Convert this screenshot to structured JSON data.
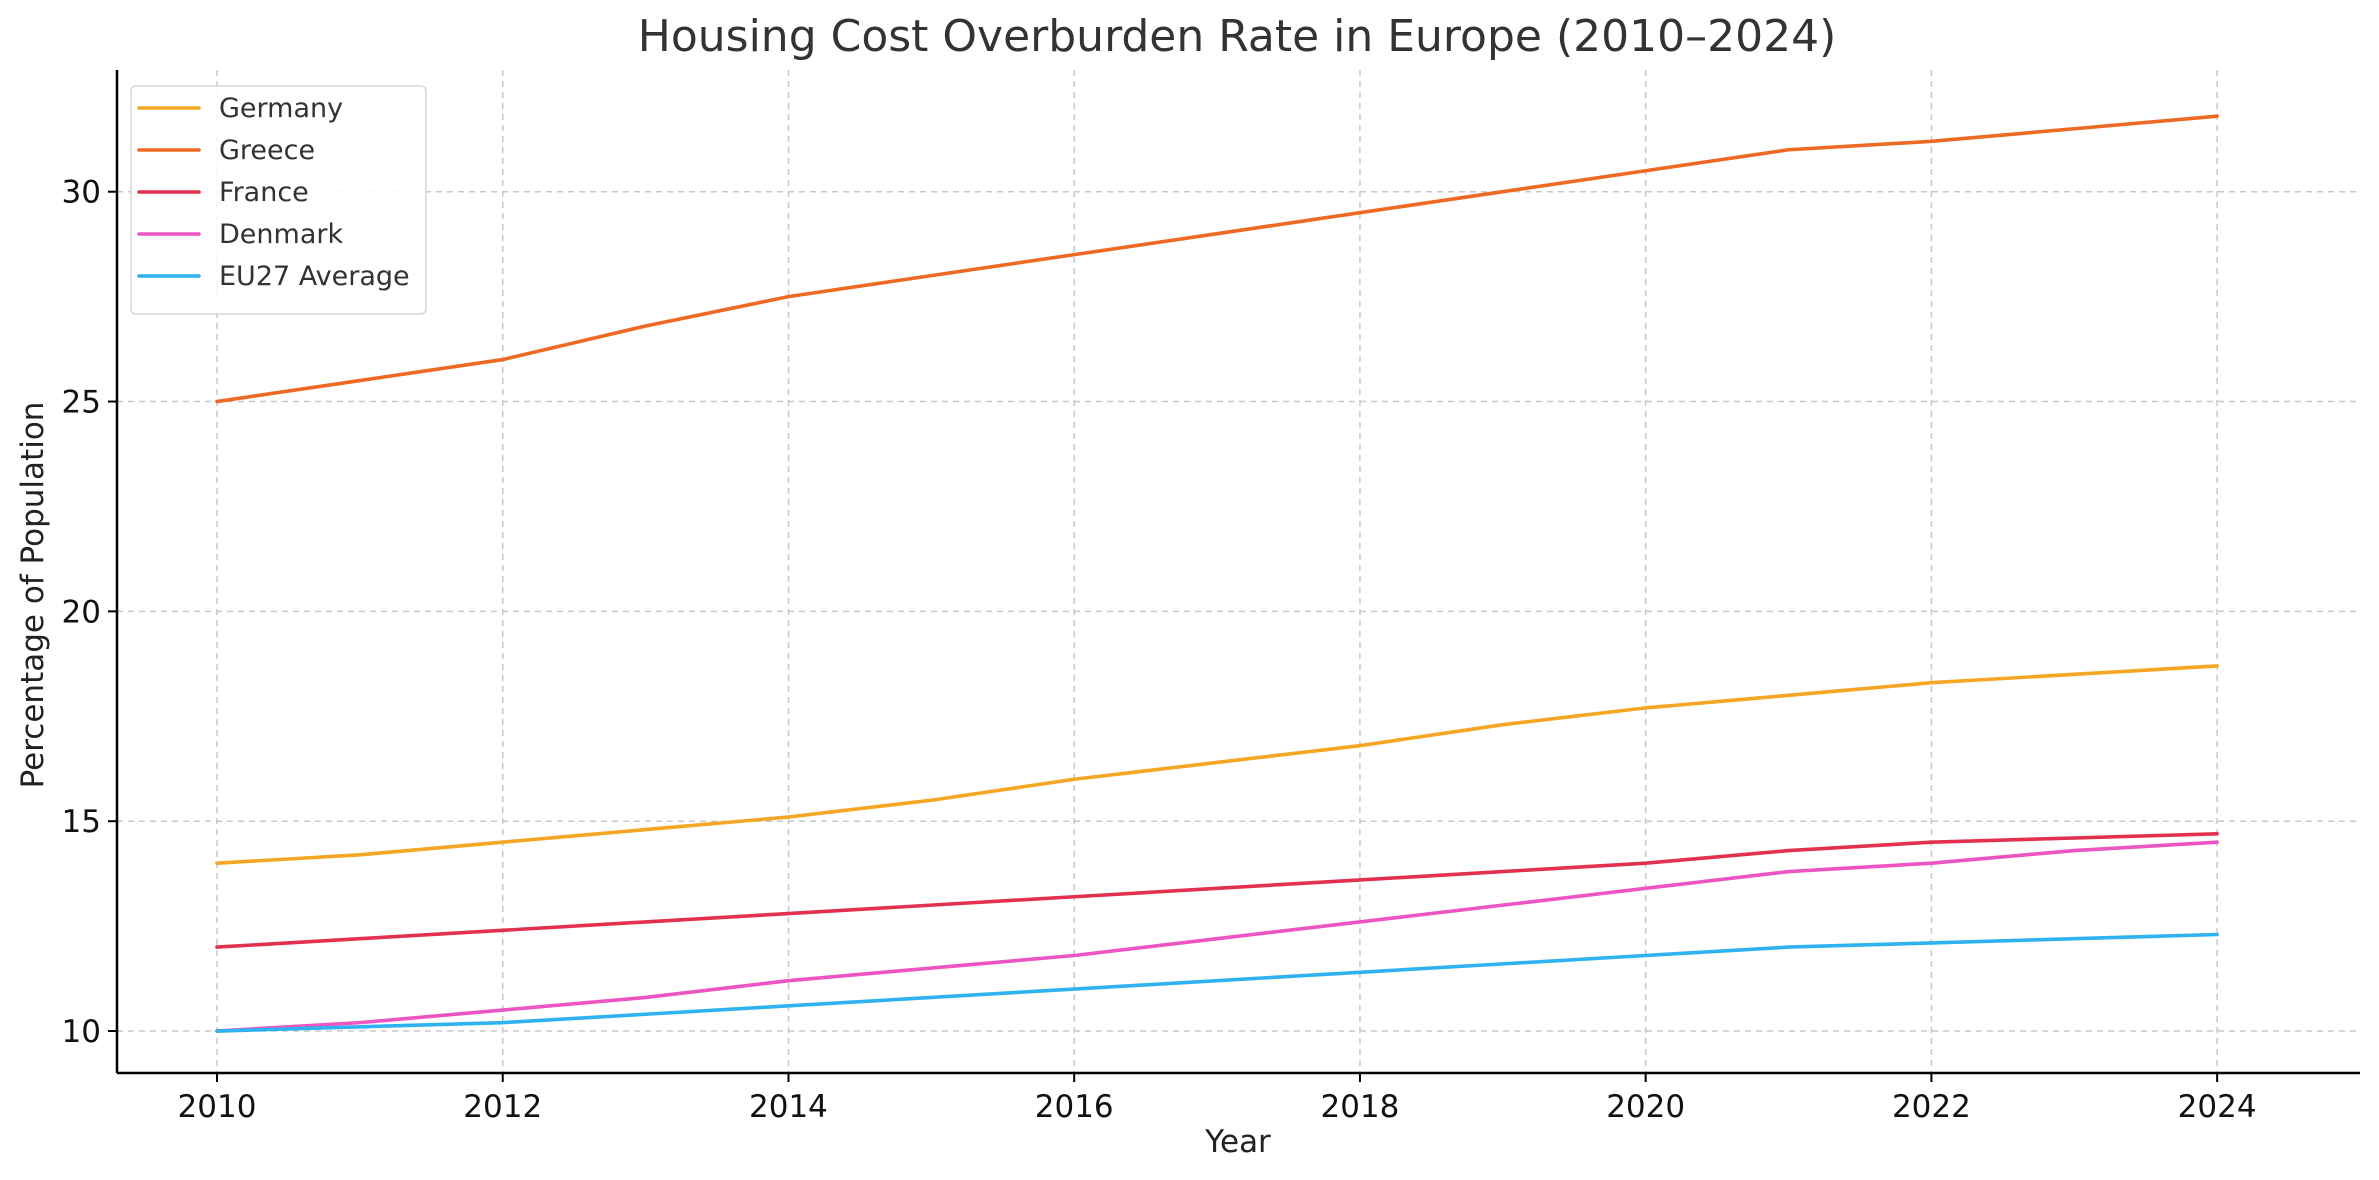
{
  "chart_data": {
    "type": "line",
    "title": "Housing Cost Overburden Rate in Europe (2010–2024)",
    "xlabel": "Year",
    "ylabel": "Percentage of Population",
    "x": [
      2010,
      2011,
      2012,
      2013,
      2014,
      2015,
      2016,
      2017,
      2018,
      2019,
      2020,
      2021,
      2022,
      2023,
      2024
    ],
    "xticks": [
      2010,
      2012,
      2014,
      2016,
      2018,
      2020,
      2022,
      2024
    ],
    "yticks": [
      10,
      15,
      20,
      25,
      30
    ],
    "xlim": [
      2009.3,
      2025.0
    ],
    "ylim": [
      9.0,
      32.9
    ],
    "grid": true,
    "legend_position": "top-left",
    "series": [
      {
        "name": "Germany",
        "color": "#F5A623",
        "values": [
          14.0,
          14.2,
          14.5,
          14.8,
          15.1,
          15.5,
          16.0,
          16.4,
          16.8,
          17.3,
          17.7,
          18.0,
          18.3,
          18.5,
          18.7
        ]
      },
      {
        "name": "Greece",
        "color": "#EE6A24",
        "values": [
          25.0,
          25.5,
          26.0,
          26.8,
          27.5,
          28.0,
          28.5,
          29.0,
          29.5,
          30.0,
          30.5,
          31.0,
          31.2,
          31.5,
          31.8
        ]
      },
      {
        "name": "France",
        "color": "#E2314F",
        "values": [
          12.0,
          12.2,
          12.4,
          12.6,
          12.8,
          13.0,
          13.2,
          13.4,
          13.6,
          13.8,
          14.0,
          14.3,
          14.5,
          14.6,
          14.7
        ]
      },
      {
        "name": "Denmark",
        "color": "#EC55C2",
        "values": [
          10.0,
          10.2,
          10.5,
          10.8,
          11.2,
          11.5,
          11.8,
          12.2,
          12.6,
          13.0,
          13.4,
          13.8,
          14.0,
          14.3,
          14.5
        ]
      },
      {
        "name": "EU27 Average",
        "color": "#2FB3F0",
        "values": [
          10.0,
          10.1,
          10.2,
          10.4,
          10.6,
          10.8,
          11.0,
          11.2,
          11.4,
          11.6,
          11.8,
          12.0,
          12.1,
          12.2,
          12.3
        ]
      }
    ]
  }
}
